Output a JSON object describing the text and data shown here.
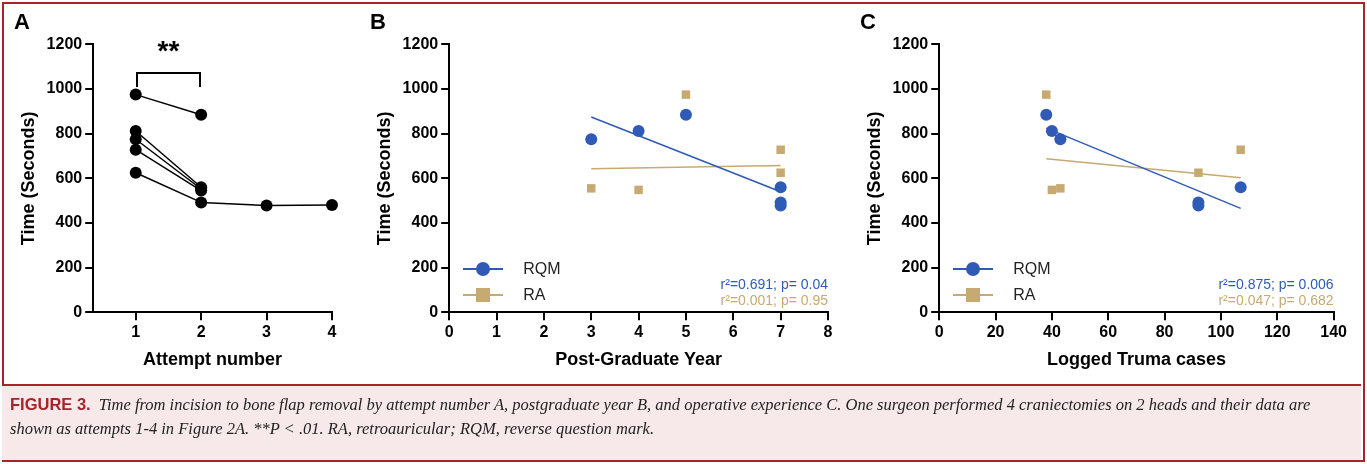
{
  "chart_data": [
    {
      "type": "line",
      "title": "A",
      "xlabel": "Attempt number",
      "ylabel": "Time (Seconds)",
      "xlim": [
        0.35,
        4
      ],
      "xticks": [
        1,
        2,
        3,
        4
      ],
      "ylim": [
        0,
        1200
      ],
      "yticks": [
        0,
        200,
        400,
        600,
        800,
        1000,
        1200
      ],
      "grid": false,
      "marker": "circle",
      "annotations": [
        "**"
      ],
      "series": [
        {
          "color": "#000000",
          "x": [
            1,
            2
          ],
          "values": [
            975,
            885
          ]
        },
        {
          "color": "#000000",
          "x": [
            1,
            2
          ],
          "values": [
            812,
            560
          ]
        },
        {
          "color": "#000000",
          "x": [
            1,
            2
          ],
          "values": [
            775,
            552
          ]
        },
        {
          "color": "#000000",
          "x": [
            1,
            2
          ],
          "values": [
            728,
            545
          ]
        },
        {
          "color": "#000000",
          "x": [
            1,
            2,
            3,
            4
          ],
          "values": [
            625,
            492,
            478,
            480
          ]
        }
      ]
    },
    {
      "type": "scatter",
      "title": "B",
      "xlabel": "Post-Graduate Year",
      "ylabel": "Time (Seconds)",
      "xlim": [
        0,
        8
      ],
      "xticks": [
        0,
        1,
        2,
        3,
        4,
        5,
        6,
        7,
        8
      ],
      "ylim": [
        0,
        1200
      ],
      "yticks": [
        0,
        200,
        400,
        600,
        800,
        1000,
        1200
      ],
      "grid": false,
      "legend": "bottom left",
      "annotations": [
        "r²=0.691; p= 0.04",
        "r²=0.001; p= 0.95"
      ],
      "series": [
        {
          "name": "RQM",
          "color": "#2f5bb7",
          "marker": "circle",
          "x": [
            3,
            4,
            5,
            7,
            7,
            7
          ],
          "values": [
            775,
            812,
            885,
            560,
            492,
            478
          ]
        },
        {
          "name": "RA",
          "color": "#c6aa72",
          "marker": "square",
          "x": [
            3,
            4,
            5,
            7,
            7
          ],
          "values": [
            555,
            548,
            975,
            728,
            625
          ]
        },
        {
          "type": "line",
          "color": "#2f5bb7",
          "marker": "none",
          "x": [
            3,
            7
          ],
          "values": [
            875,
            540
          ]
        },
        {
          "type": "line",
          "color": "#c6aa72",
          "marker": "none",
          "x": [
            3,
            7
          ],
          "values": [
            643,
            657
          ]
        }
      ]
    },
    {
      "type": "scatter",
      "title": "C",
      "xlabel": "Logged Truma cases",
      "ylabel": "Time (Seconds)",
      "xlim": [
        0,
        140
      ],
      "xticks": [
        0,
        20,
        40,
        60,
        80,
        100,
        120,
        140
      ],
      "ylim": [
        0,
        1200
      ],
      "yticks": [
        0,
        200,
        400,
        600,
        800,
        1000,
        1200
      ],
      "grid": false,
      "legend": "bottom left",
      "annotations": [
        "r²=0.875; p= 0.006",
        "r²=0.047; p= 0.682"
      ],
      "series": [
        {
          "name": "RQM",
          "color": "#2f5bb7",
          "marker": "circle",
          "x": [
            38,
            40,
            43,
            92,
            92,
            107
          ],
          "values": [
            885,
            812,
            775,
            492,
            478,
            560
          ]
        },
        {
          "name": "RA",
          "color": "#c6aa72",
          "marker": "square",
          "x": [
            38,
            40,
            43,
            92,
            107
          ],
          "values": [
            975,
            548,
            555,
            625,
            728
          ]
        },
        {
          "type": "line",
          "color": "#2f5bb7",
          "marker": "none",
          "x": [
            38,
            107
          ],
          "values": [
            825,
            465
          ]
        },
        {
          "type": "line",
          "color": "#c6aa72",
          "marker": "none",
          "x": [
            38,
            107
          ],
          "values": [
            688,
            603
          ]
        }
      ]
    },
    {
      "type": "other",
      "annotations": [
        "FIGURE 3.",
        "Time from incision to bone flap removal by attempt number A, postgraduate year B, and operative experience C. One surgeon performed 4 craniectomies on 2 heads and their data are shown as attempts 1-4 in Figure 2A. **P < .01. RA, retroauricular; RQM, reverse question mark."
      ]
    }
  ]
}
